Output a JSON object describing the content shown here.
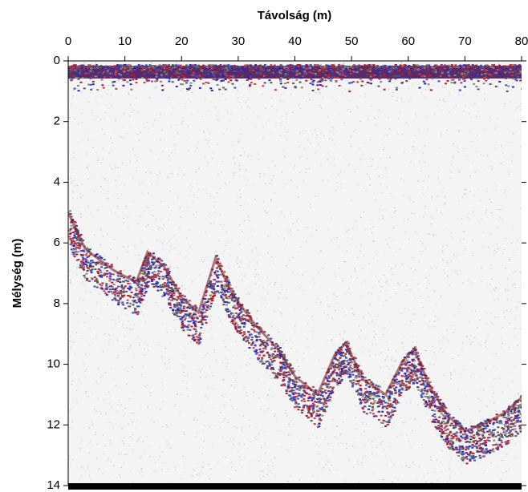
{
  "chart_data": {
    "type": "radargram",
    "x_label": "Távolság (m)",
    "y_label": "Mélység (m)",
    "xlim": [
      0,
      80
    ],
    "xticks": [
      0,
      10,
      20,
      30,
      40,
      50,
      60,
      70,
      80
    ],
    "ylim": [
      0,
      14
    ],
    "yticks": [
      0,
      2,
      4,
      6,
      8,
      10,
      12,
      14
    ],
    "y_reversed": true,
    "x": [
      0,
      3,
      8,
      12,
      14,
      17,
      20,
      23,
      26,
      29,
      33,
      37,
      40,
      44,
      47,
      49,
      52,
      56,
      59,
      61,
      64,
      67,
      70,
      73,
      77,
      80
    ],
    "series": [
      {
        "color": "#7a1f2a",
        "values": [
          5.0,
          6.2,
          6.9,
          7.3,
          6.3,
          6.8,
          7.8,
          8.3,
          6.5,
          7.7,
          8.7,
          9.5,
          10.4,
          11.0,
          9.7,
          9.3,
          10.5,
          11.0,
          9.9,
          9.5,
          10.8,
          11.7,
          12.2,
          12.0,
          11.6,
          11.1
        ]
      }
    ]
  }
}
